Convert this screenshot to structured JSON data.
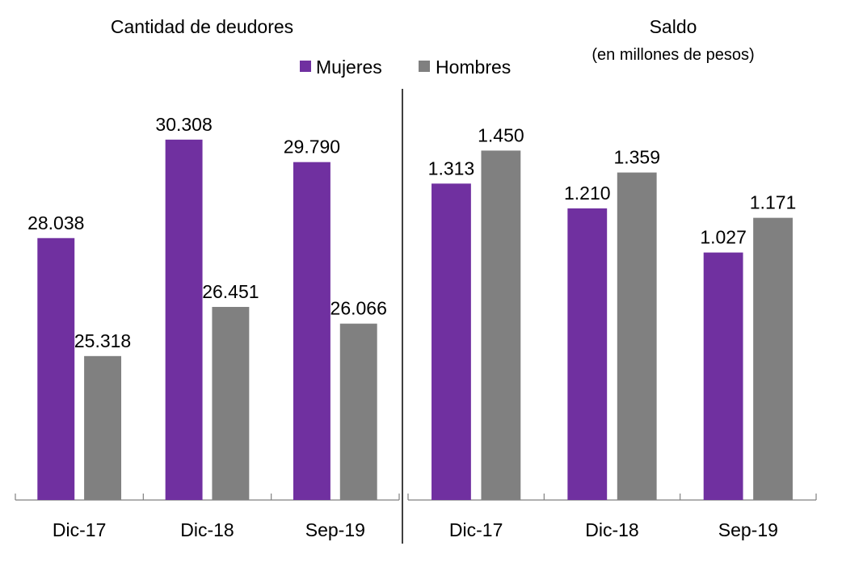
{
  "colors": {
    "mujeres": "#7030A0",
    "hombres": "#808080"
  },
  "legend": [
    "Mujeres",
    "Hombres"
  ],
  "chart_data": [
    {
      "type": "bar",
      "title": "Cantidad de deudores",
      "subtitle": "",
      "categories": [
        "Dic-17",
        "Dic-18",
        "Sep-19"
      ],
      "series": [
        {
          "name": "Mujeres",
          "values": [
            28038,
            30308,
            29790
          ],
          "labels": [
            "28.038",
            "30.308",
            "29.790"
          ]
        },
        {
          "name": "Hombres",
          "values": [
            25318,
            26451,
            26066
          ],
          "labels": [
            "25.318",
            "26.451",
            "26.066"
          ]
        }
      ],
      "ylim": [
        22000,
        32000
      ],
      "grid": false,
      "legend_position": "top-right"
    },
    {
      "type": "bar",
      "title": "Saldo",
      "subtitle": "(en millones de pesos)",
      "categories": [
        "Dic-17",
        "Dic-18",
        "Sep-19"
      ],
      "series": [
        {
          "name": "Mujeres",
          "values": [
            1313,
            1210,
            1027
          ],
          "labels": [
            "1.313",
            "1.210",
            "1.027"
          ]
        },
        {
          "name": "Hombres",
          "values": [
            1450,
            1359,
            1171
          ],
          "labels": [
            "1.450",
            "1.359",
            "1.171"
          ]
        }
      ],
      "ylim": [
        0,
        1800
      ],
      "grid": false
    }
  ]
}
